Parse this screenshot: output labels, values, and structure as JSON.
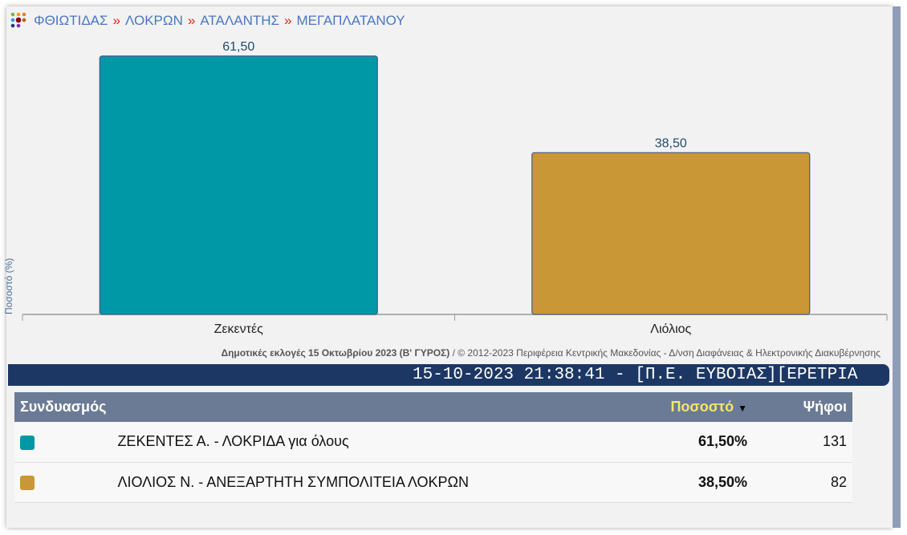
{
  "breadcrumb": [
    "ΦΘΙΩΤΙΔΑΣ",
    "ΛΟΚΡΩΝ",
    "ΑΤΑΛΑΝΤΗΣ",
    "ΜΕΓΑΠΛΑΤΑΝΟΥ"
  ],
  "breadcrumb_separator": "»",
  "chart_data": {
    "type": "bar",
    "categories": [
      "Ζεκεντές",
      "Λιόλιος"
    ],
    "values": [
      61.5,
      38.5
    ],
    "data_labels": [
      "61,50",
      "38,50"
    ],
    "colors": [
      "#0097a7",
      "#c99736"
    ],
    "ylabel": "Ποσοστό (%)",
    "xlabel": "",
    "grid": false
  },
  "credit": {
    "bold": "Δημοτικές εκλογές 15 Οκτωβρίου 2023 (Β' ΓΥΡΟΣ)",
    "rest": " / © 2012-2023 Περιφέρεια Κεντρικής Μακεδονίας - Δ/νση Διαφάνειας & Ηλεκτρονικής Διακυβέρνησης"
  },
  "ticker": "15-10-2023 21:38:41 - [Π.Ε. ΕΥΒΟΙΑΣ][ΕΡΕΤΡΙΑ",
  "table": {
    "headers": {
      "combo": "Συνδυασμός",
      "pct": "Ποσοστό",
      "votes": "Ψήφοι"
    },
    "sort_color": "#f5e663",
    "rows": [
      {
        "color": "#0097a7",
        "name": "ΖΕΚΕΝΤΕΣ Α. - ΛΟΚΡΙΔΑ για όλους",
        "pct": "61,50%",
        "votes": "131"
      },
      {
        "color": "#c99736",
        "name": "ΛΙΟΛΙΟΣ Ν. - ΑΝΕΞΑΡΤΗΤΗ ΣΥΜΠΟΛΙΤΕΙΑ ΛΟΚΡΩΝ",
        "pct": "38,50%",
        "votes": "82"
      }
    ]
  }
}
